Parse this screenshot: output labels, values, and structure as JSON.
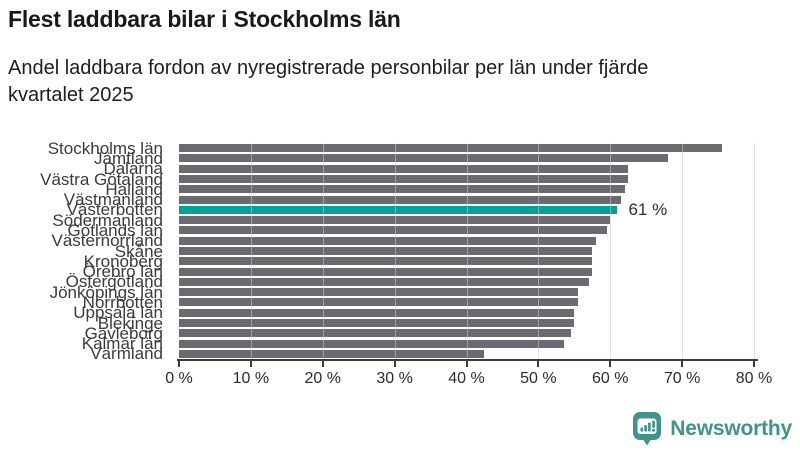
{
  "header": {
    "title": "Flest laddbara bilar i Stockholms län",
    "subtitle_line1": "Andel laddbara fordon av nyregistrerade personbilar per län under fjärde",
    "subtitle_line2": "kvartalet 2025"
  },
  "chart_data": {
    "type": "bar",
    "orientation": "horizontal",
    "title": "Flest laddbara bilar i Stockholms län",
    "subtitle": "Andel laddbara fordon av nyregistrerade personbilar per län under fjärde kvartalet 2025",
    "categories": [
      "Stockholms län",
      "Jämtland",
      "Dalarna",
      "Västra Götaland",
      "Halland",
      "Västmanland",
      "Västerbotten",
      "Södermanland",
      "Gotlands län",
      "Västernorrland",
      "Skåne",
      "Kronoberg",
      "Örebro län",
      "Östergötland",
      "Jönköpings län",
      "Norrbotten",
      "Uppsala län",
      "Blekinge",
      "Gävleborg",
      "Kalmar län",
      "Värmland"
    ],
    "values": [
      75.5,
      68,
      62.5,
      62.5,
      62,
      61.5,
      61,
      60,
      59.5,
      58,
      57.5,
      57.5,
      57.5,
      57,
      55.5,
      55.5,
      55,
      55,
      54.5,
      53.5,
      42.5
    ],
    "unit": "%",
    "xlim": [
      0,
      80
    ],
    "x_ticks": [
      "0 %",
      "10 %",
      "20 %",
      "30 %",
      "40 %",
      "50 %",
      "60 %",
      "70 %",
      "80 %"
    ],
    "grid": true,
    "legend": "none",
    "bar_color": "#6a6a71",
    "highlight": {
      "category": "Västerbotten",
      "index": 6,
      "value": 61,
      "label": "61 %",
      "color": "#00a29b"
    }
  },
  "footer": {
    "brand": "Newsworthy",
    "brand_color": "#3f948c",
    "logo_icon": "newsworthy-speech-bubble-bar-chart-icon"
  }
}
